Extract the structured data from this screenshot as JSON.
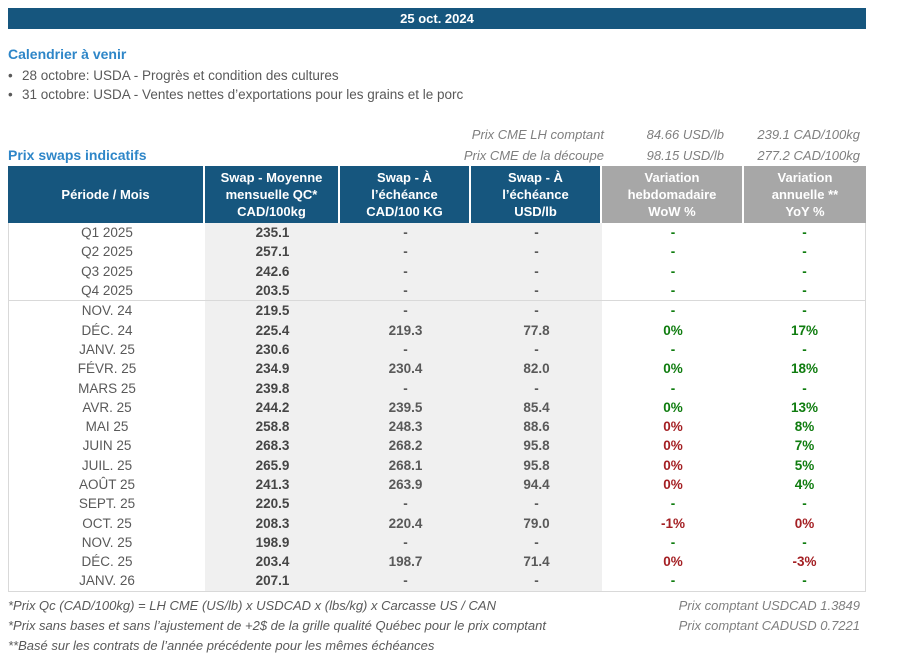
{
  "title_bar": {
    "date": "25 oct. 2024"
  },
  "calendar": {
    "heading": "Calendrier à venir",
    "bullet": "•",
    "items": [
      "28 octobre: USDA - Progrès et condition des cultures",
      "31 octobre: USDA - Ventes nettes d’exportations pour les grains et le porc"
    ]
  },
  "swaps": {
    "heading": "Prix swaps indicatifs",
    "cme_quotes": [
      {
        "label": "Prix CME LH comptant",
        "usd": "84.66 USD/lb",
        "cad": "239.1 CAD/100kg"
      },
      {
        "label": "Prix CME de la découpe",
        "usd": "98.15 USD/lb",
        "cad": "277.2 CAD/100kg"
      }
    ]
  },
  "table": {
    "headers": [
      "Période / Mois",
      "Swap - Moyenne\nmensuelle QC*\nCAD/100kg",
      "Swap - À\nl’échéance\nCAD/100 KG",
      "Swap - À\nl’échéance\nUSD/lb",
      "Variation\nhebdomadaire\nWoW %",
      "Variation\nannuelle **\nYoY %"
    ],
    "rows": [
      {
        "period": "Q1 2025",
        "avg": "235.1",
        "cad": "-",
        "usd": "-",
        "wow": "-",
        "wow_c": "green",
        "yoy": "-",
        "yoy_c": "green",
        "divider": false
      },
      {
        "period": "Q2 2025",
        "avg": "257.1",
        "cad": "-",
        "usd": "-",
        "wow": "-",
        "wow_c": "green",
        "yoy": "-",
        "yoy_c": "green",
        "divider": false
      },
      {
        "period": "Q3 2025",
        "avg": "242.6",
        "cad": "-",
        "usd": "-",
        "wow": "-",
        "wow_c": "green",
        "yoy": "-",
        "yoy_c": "green",
        "divider": false
      },
      {
        "period": "Q4 2025",
        "avg": "203.5",
        "cad": "-",
        "usd": "-",
        "wow": "-",
        "wow_c": "green",
        "yoy": "-",
        "yoy_c": "green",
        "divider": true
      },
      {
        "period": "NOV. 24",
        "avg": "219.5",
        "cad": "-",
        "usd": "-",
        "wow": "-",
        "wow_c": "green",
        "yoy": "-",
        "yoy_c": "green",
        "divider": false
      },
      {
        "period": "DÉC. 24",
        "avg": "225.4",
        "cad": "219.3",
        "usd": "77.8",
        "wow": "0%",
        "wow_c": "green",
        "yoy": "17%",
        "yoy_c": "green",
        "divider": false
      },
      {
        "period": "JANV. 25",
        "avg": "230.6",
        "cad": "-",
        "usd": "-",
        "wow": "-",
        "wow_c": "green",
        "yoy": "-",
        "yoy_c": "green",
        "divider": false
      },
      {
        "period": "FÉVR. 25",
        "avg": "234.9",
        "cad": "230.4",
        "usd": "82.0",
        "wow": "0%",
        "wow_c": "green",
        "yoy": "18%",
        "yoy_c": "green",
        "divider": false
      },
      {
        "period": "MARS 25",
        "avg": "239.8",
        "cad": "-",
        "usd": "-",
        "wow": "-",
        "wow_c": "green",
        "yoy": "-",
        "yoy_c": "green",
        "divider": false
      },
      {
        "period": "AVR. 25",
        "avg": "244.2",
        "cad": "239.5",
        "usd": "85.4",
        "wow": "0%",
        "wow_c": "green",
        "yoy": "13%",
        "yoy_c": "green",
        "divider": false
      },
      {
        "period": "MAI 25",
        "avg": "258.8",
        "cad": "248.3",
        "usd": "88.6",
        "wow": "0%",
        "wow_c": "red",
        "yoy": "8%",
        "yoy_c": "green",
        "divider": false
      },
      {
        "period": "JUIN 25",
        "avg": "268.3",
        "cad": "268.2",
        "usd": "95.8",
        "wow": "0%",
        "wow_c": "red",
        "yoy": "7%",
        "yoy_c": "green",
        "divider": false
      },
      {
        "period": "JUIL. 25",
        "avg": "265.9",
        "cad": "268.1",
        "usd": "95.8",
        "wow": "0%",
        "wow_c": "red",
        "yoy": "5%",
        "yoy_c": "green",
        "divider": false
      },
      {
        "period": "AOÛT 25",
        "avg": "241.3",
        "cad": "263.9",
        "usd": "94.4",
        "wow": "0%",
        "wow_c": "red",
        "yoy": "4%",
        "yoy_c": "green",
        "divider": false
      },
      {
        "period": "SEPT. 25",
        "avg": "220.5",
        "cad": "-",
        "usd": "-",
        "wow": "-",
        "wow_c": "green",
        "yoy": "-",
        "yoy_c": "green",
        "divider": false
      },
      {
        "period": "OCT. 25",
        "avg": "208.3",
        "cad": "220.4",
        "usd": "79.0",
        "wow": "-1%",
        "wow_c": "red",
        "yoy": "0%",
        "yoy_c": "red",
        "divider": false
      },
      {
        "period": "NOV. 25",
        "avg": "198.9",
        "cad": "-",
        "usd": "-",
        "wow": "-",
        "wow_c": "green",
        "yoy": "-",
        "yoy_c": "green",
        "divider": false
      },
      {
        "period": "DÉC. 25",
        "avg": "203.4",
        "cad": "198.7",
        "usd": "71.4",
        "wow": "0%",
        "wow_c": "red",
        "yoy": "-3%",
        "yoy_c": "red",
        "divider": false
      },
      {
        "period": "JANV. 26",
        "avg": "207.1",
        "cad": "-",
        "usd": "-",
        "wow": "-",
        "wow_c": "green",
        "yoy": "-",
        "yoy_c": "green",
        "divider": false
      }
    ]
  },
  "footnotes": {
    "lines": [
      "*Prix Qc (CAD/100kg) = LH CME (US/lb) x USDCAD x (lbs/kg) x Carcasse US / CAN",
      "*Prix sans bases et sans l’ajustement de +2$ de la grille qualité Québec pour le prix comptant",
      "**Basé sur les contrats de l’année précédente pour les mêmes échéances"
    ],
    "fx": [
      "Prix comptant USDCAD 1.3849",
      "Prix comptant CADUSD 0.7221"
    ]
  },
  "colors": {
    "bar_blue": "#16567E",
    "heading_blue": "#2E86C8",
    "header_gray": "#A7A7A7",
    "shade_gray": "#F0F0F0",
    "text_gray": "#595959",
    "positive_green": "#0F7C0F",
    "negative_red": "#A42024",
    "border_gray": "#D9D9D9"
  }
}
